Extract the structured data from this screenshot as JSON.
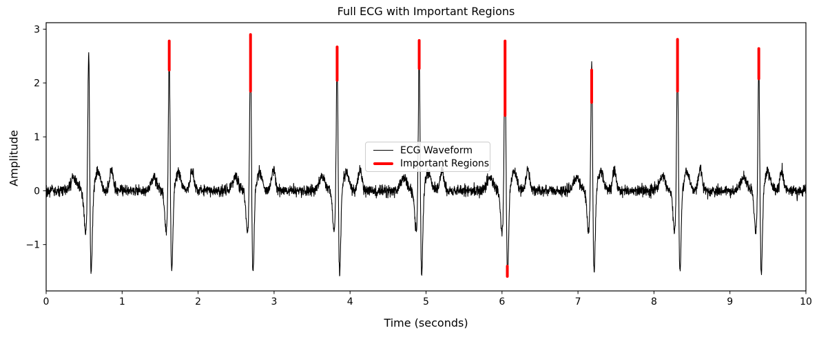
{
  "chart_data": {
    "type": "line",
    "title": "Full ECG with Important Regions",
    "xlabel": "Time (seconds)",
    "ylabel": "Amplitude",
    "xlim": [
      0,
      10
    ],
    "ylim": [
      -1.86,
      3.12
    ],
    "grid": false,
    "background": "#ffffff",
    "xticks": [
      {
        "value": 0,
        "label": "0"
      },
      {
        "value": 1,
        "label": "1"
      },
      {
        "value": 2,
        "label": "2"
      },
      {
        "value": 3,
        "label": "3"
      },
      {
        "value": 4,
        "label": "4"
      },
      {
        "value": 5,
        "label": "5"
      },
      {
        "value": 6,
        "label": "6"
      },
      {
        "value": 7,
        "label": "7"
      },
      {
        "value": 8,
        "label": "8"
      },
      {
        "value": 9,
        "label": "9"
      },
      {
        "value": 10,
        "label": "10"
      }
    ],
    "yticks": [
      {
        "value": -1,
        "label": "−1"
      },
      {
        "value": 0,
        "label": "0"
      },
      {
        "value": 1,
        "label": "1"
      },
      {
        "value": 2,
        "label": "2"
      },
      {
        "value": 3,
        "label": "3"
      }
    ],
    "legend": {
      "position": "center",
      "entries": [
        {
          "label": "ECG Waveform",
          "color": "#000000",
          "linewidth": 1.5
        },
        {
          "label": "Important Regions",
          "color": "#ff0000",
          "linewidth": 4
        }
      ]
    },
    "series": [
      {
        "name": "ECG Waveform",
        "color": "#000000",
        "linewidth": 1.1,
        "model": "synthetic-ecg",
        "duration_s": 10,
        "sample_rate_hz": 400,
        "noise_std": 0.05,
        "beats": [
          {
            "t": 0.56,
            "r_amplitude": 2.84
          },
          {
            "t": 1.62,
            "r_amplitude": 2.78
          },
          {
            "t": 2.69,
            "r_amplitude": 2.9
          },
          {
            "t": 3.83,
            "r_amplitude": 2.67
          },
          {
            "t": 4.91,
            "r_amplitude": 2.79
          },
          {
            "t": 6.04,
            "r_amplitude": 2.78
          },
          {
            "t": 7.18,
            "r_amplitude": 2.65
          },
          {
            "t": 8.31,
            "r_amplitude": 2.81
          },
          {
            "t": 9.38,
            "r_amplitude": 2.64
          }
        ],
        "components": {
          "p": {
            "amp": 0.25,
            "dt": -0.2,
            "sigma": 0.04
          },
          "q": {
            "amp": -0.75,
            "dt": -0.04,
            "sigma": 0.02
          },
          "r": {
            "sigma": 0.011
          },
          "s": {
            "amp": -1.58,
            "dt": 0.032,
            "sigma": 0.015
          },
          "t1": {
            "amp": 0.35,
            "dt": 0.12,
            "sigma": 0.035
          },
          "t2": {
            "amp": 0.38,
            "dt": 0.3,
            "sigma": 0.025
          }
        }
      },
      {
        "name": "Important Regions",
        "color": "#ff0000",
        "linewidth": 4,
        "segments": [
          {
            "t": 1.62,
            "from": 2.24,
            "to": 2.78
          },
          {
            "t": 2.69,
            "from": 1.85,
            "to": 2.9
          },
          {
            "t": 3.83,
            "from": 2.05,
            "to": 2.67
          },
          {
            "t": 4.91,
            "from": 2.27,
            "to": 2.79
          },
          {
            "t": 6.04,
            "from": 1.4,
            "to": 2.78
          },
          {
            "t": 6.07,
            "from": -1.59,
            "to": -1.4
          },
          {
            "t": 7.18,
            "from": 1.64,
            "to": 2.24
          },
          {
            "t": 8.31,
            "from": 1.85,
            "to": 2.81
          },
          {
            "t": 9.38,
            "from": 2.08,
            "to": 2.64
          }
        ]
      }
    ]
  }
}
